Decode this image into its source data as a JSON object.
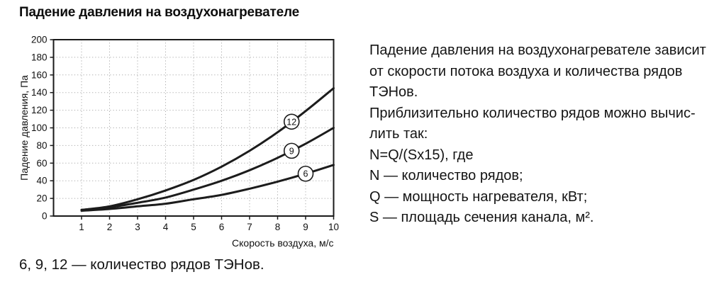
{
  "figure_title": "Падение давления на воздухонагревателе",
  "chart_data": {
    "type": "line",
    "title": "Падение давления на воздухонагревателе",
    "xlabel": "Скорость воздуха, м/с",
    "ylabel": "Падение давления, Па",
    "xlim": [
      0,
      10
    ],
    "ylim": [
      0,
      200
    ],
    "x_ticks": [
      1,
      2,
      3,
      4,
      5,
      6,
      7,
      8,
      9,
      10
    ],
    "y_ticks": [
      0,
      20,
      40,
      60,
      80,
      100,
      120,
      140,
      160,
      180,
      200
    ],
    "grid": true,
    "grid_style": "dotted",
    "line_color": "#1c1c1c",
    "x": [
      1,
      2,
      3,
      4,
      5,
      6,
      7,
      8,
      9,
      10
    ],
    "series": [
      {
        "name": "12",
        "values": [
          7,
          11,
          19,
          29,
          41,
          56,
          74,
          95,
          119,
          145
        ],
        "label_x": 8.5,
        "label_y": 107
      },
      {
        "name": "9",
        "values": [
          7,
          10,
          15,
          21,
          30,
          40,
          52,
          66,
          82,
          100
        ],
        "label_x": 8.5,
        "label_y": 74
      },
      {
        "name": "6",
        "values": [
          6,
          8,
          11,
          14,
          19,
          24,
          31,
          39,
          48,
          58
        ],
        "label_x": 9.0,
        "label_y": 48
      }
    ],
    "legend_note": "6, 9, 12 — количество рядов ТЭНов"
  },
  "description": {
    "lines": [
      "Падение давления на воздухонагревателе зависит",
      "от скорости потока воздуха и количества рядов",
      "ТЭНов.",
      "Приблизительно количество рядов можно вычис-",
      "лить так:",
      "N=Q/(Sx15), где",
      "N — количество рядов;",
      "Q — мощность нагревателя, кВт;",
      "S — площадь сечения канала, м²."
    ]
  },
  "caption": "6, 9, 12 — количество рядов ТЭНов."
}
